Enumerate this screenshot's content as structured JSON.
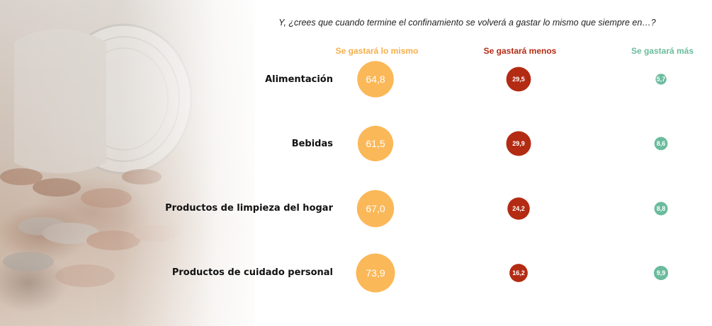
{
  "question": "Y, ¿crees que cuando termine el confinamiento  se volverá a gastar lo mismo que siempre en…?",
  "colors": {
    "mismo": "#fbb858",
    "menos": "#b32b13",
    "mas": "#6bbb9d",
    "header_mismo": "#f6ae48",
    "header_menos": "#b32b13",
    "header_mas": "#6bbb9d"
  },
  "chart_data": {
    "type": "bubble",
    "title": "Y, ¿crees que cuando termine el confinamiento  se volverá a gastar lo mismo que siempre en…?",
    "columns": [
      "Se gastará lo mismo",
      "Se gastará menos",
      "Se gastará más"
    ],
    "categories": [
      "Alimentación",
      "Bebidas",
      "Productos de limpieza del hogar",
      "Productos de cuidado personal"
    ],
    "series": [
      {
        "name": "Se gastará lo mismo",
        "values": [
          64.8,
          61.5,
          67.0,
          73.9
        ],
        "labels": [
          "64,8",
          "61,5",
          "67,0",
          "73,9"
        ]
      },
      {
        "name": "Se gastará menos",
        "values": [
          29.5,
          29.9,
          24.2,
          16.2
        ],
        "labels": [
          "29,5",
          "29,9",
          "24,2",
          "16,2"
        ]
      },
      {
        "name": "Se gastará más",
        "values": [
          5.7,
          8.6,
          8.8,
          9.9
        ],
        "labels": [
          "5,7",
          "8,6",
          "8,8",
          "9,9"
        ]
      }
    ]
  }
}
